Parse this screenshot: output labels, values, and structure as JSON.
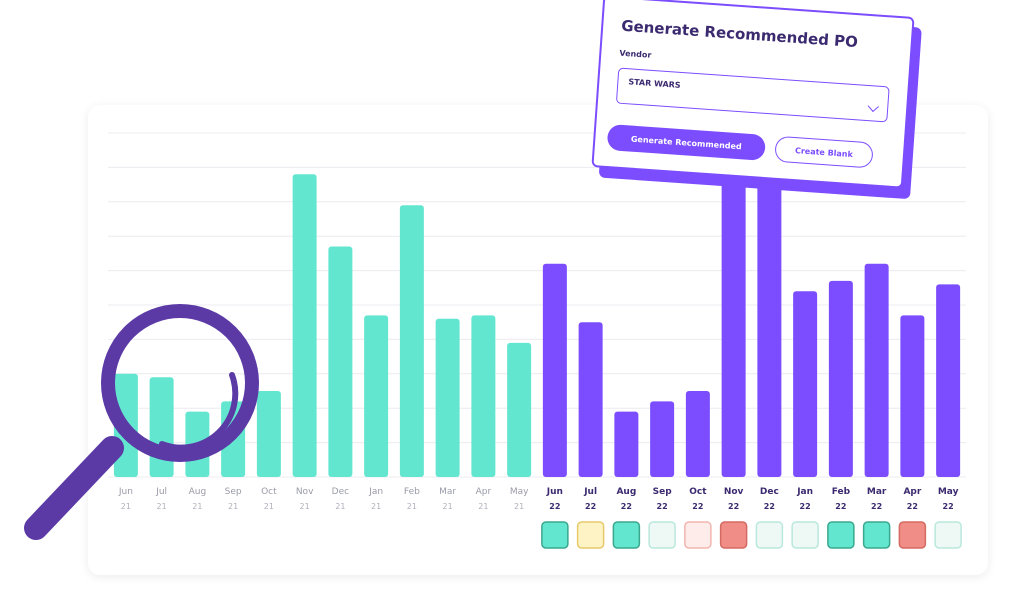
{
  "chart_data": {
    "type": "bar",
    "categories": [
      {
        "month": "Jun",
        "year": "21"
      },
      {
        "month": "Jul",
        "year": "21"
      },
      {
        "month": "Aug",
        "year": "21"
      },
      {
        "month": "Sep",
        "year": "21"
      },
      {
        "month": "Oct",
        "year": "21"
      },
      {
        "month": "Nov",
        "year": "21"
      },
      {
        "month": "Dec",
        "year": "21"
      },
      {
        "month": "Jan",
        "year": "21"
      },
      {
        "month": "Feb",
        "year": "21"
      },
      {
        "month": "Mar",
        "year": "21"
      },
      {
        "month": "Apr",
        "year": "21"
      },
      {
        "month": "May",
        "year": "21"
      },
      {
        "month": "Jun",
        "year": "22"
      },
      {
        "month": "Jul",
        "year": "22"
      },
      {
        "month": "Aug",
        "year": "22"
      },
      {
        "month": "Sep",
        "year": "22"
      },
      {
        "month": "Oct",
        "year": "22"
      },
      {
        "month": "Nov",
        "year": "22"
      },
      {
        "month": "Dec",
        "year": "22"
      },
      {
        "month": "Jan",
        "year": "22"
      },
      {
        "month": "Feb",
        "year": "22"
      },
      {
        "month": "Mar",
        "year": "22"
      },
      {
        "month": "Apr",
        "year": "22"
      },
      {
        "month": "May",
        "year": "22"
      }
    ],
    "series": [
      {
        "color": "#63e6cf",
        "values": [
          30,
          29,
          19,
          22,
          25,
          88,
          67,
          47,
          79,
          46,
          47,
          39,
          null,
          null,
          null,
          null,
          null,
          null,
          null,
          null,
          null,
          null,
          null,
          null
        ]
      },
      {
        "color": "#7c4dff",
        "values": [
          null,
          null,
          null,
          null,
          null,
          null,
          null,
          null,
          null,
          null,
          null,
          null,
          62,
          45,
          19,
          22,
          25,
          95,
          95,
          54,
          57,
          62,
          47,
          56
        ]
      }
    ],
    "ylim": [
      0,
      100
    ],
    "grid": true,
    "status_colors": [
      {
        "fill": "#63e6cf",
        "stroke": "#3aa88f"
      },
      {
        "fill": "#fdf3c4",
        "stroke": "#e7c96a"
      },
      {
        "fill": "#63e6cf",
        "stroke": "#3aa88f"
      },
      {
        "fill": "#eef9f6",
        "stroke": "#b9e8dc"
      },
      {
        "fill": "#fdecea",
        "stroke": "#f2b5ae"
      },
      {
        "fill": "#ef8d86",
        "stroke": "#d56a62"
      },
      {
        "fill": "#eef9f6",
        "stroke": "#b9e8dc"
      },
      {
        "fill": "#eef9f6",
        "stroke": "#b9e8dc"
      },
      {
        "fill": "#63e6cf",
        "stroke": "#3aa88f"
      },
      {
        "fill": "#63e6cf",
        "stroke": "#3aa88f"
      },
      {
        "fill": "#ef8d86",
        "stroke": "#d56a62"
      },
      {
        "fill": "#eef9f6",
        "stroke": "#b9e8dc"
      }
    ]
  },
  "popup": {
    "title": "Generate Recommended PO",
    "vendor_label": "Vendor",
    "vendor_value": "STAR WARS",
    "primary_button": "Generate Recommended",
    "secondary_button": "Create Blank"
  },
  "colors": {
    "past": "#63e6cf",
    "future": "#7c4dff",
    "magnifier": "#5b3aa6"
  },
  "icons": {
    "magnifier": "magnifying-glass-icon",
    "chevron": "chevron-down-icon"
  }
}
